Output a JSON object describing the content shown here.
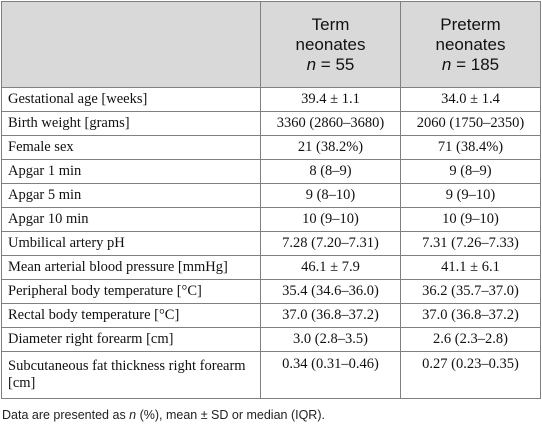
{
  "table": {
    "columns": [
      {
        "line1": "Term",
        "line2": "neonates",
        "n_label": "n",
        "n_eq": " = 55"
      },
      {
        "line1": "Preterm",
        "line2": "neonates",
        "n_label": "n",
        "n_eq": " = 185"
      }
    ],
    "rows": [
      {
        "label": "Gestational age [weeks]",
        "term": "39.4 ± 1.1",
        "preterm": "34.0 ± 1.4"
      },
      {
        "label": "Birth weight [grams]",
        "term": "3360 (2860–3680)",
        "preterm": "2060 (1750–2350)"
      },
      {
        "label": "Female sex",
        "term": "21 (38.2%)",
        "preterm": "71 (38.4%)"
      },
      {
        "label": "Apgar 1 min",
        "term": "8 (8–9)",
        "preterm": "9 (8–9)"
      },
      {
        "label": "Apgar 5 min",
        "term": "9 (8–10)",
        "preterm": "9 (9–10)"
      },
      {
        "label": "Apgar 10 min",
        "term": "10 (9–10)",
        "preterm": "10 (9–10)"
      },
      {
        "label": "Umbilical artery pH",
        "term": "7.28 (7.20–7.31)",
        "preterm": "7.31 (7.26–7.33)"
      },
      {
        "label": "Mean arterial blood pressure [mmHg]",
        "term": "46.1 ± 7.9",
        "preterm": "41.1 ± 6.1"
      },
      {
        "label": "Peripheral body temperature [°C]",
        "term": "35.4 (34.6–36.0)",
        "preterm": "36.2 (35.7–37.0)"
      },
      {
        "label": "Rectal body temperature [°C]",
        "term": "37.0 (36.8–37.2)",
        "preterm": "37.0 (36.8–37.2)"
      },
      {
        "label": "Diameter right forearm [cm]",
        "term": "3.0 (2.8–3.5)",
        "preterm": "2.6 (2.3–2.8)"
      },
      {
        "label": "Subcutaneous fat thickness right forearm [cm]",
        "term": "0.34 (0.31–0.46)",
        "preterm": "0.27 (0.23–0.35)"
      }
    ]
  },
  "footnote": {
    "prefix": "Data are presented as ",
    "n": "n",
    "suffix": " (%), mean ± SD or median (IQR)."
  }
}
